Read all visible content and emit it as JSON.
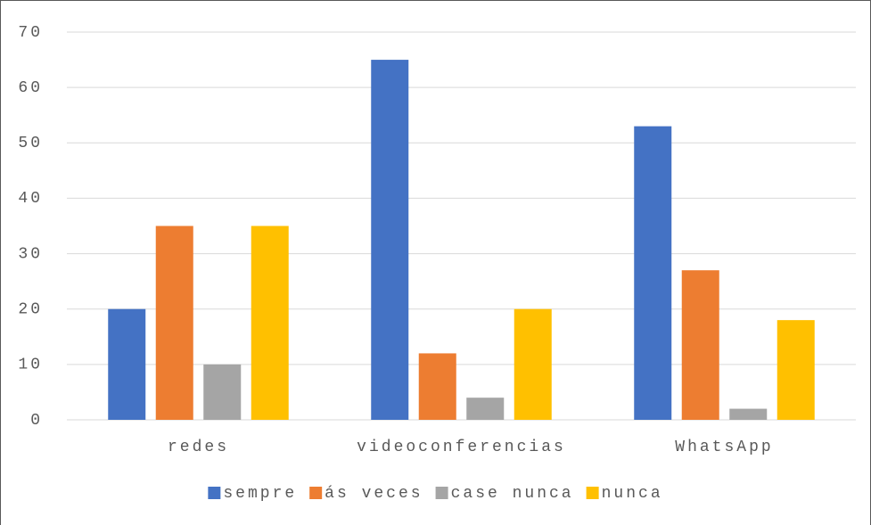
{
  "chart_data": {
    "type": "bar",
    "categories": [
      "redes",
      "videoconferencias",
      "WhatsApp"
    ],
    "series": [
      {
        "name": "sempre",
        "color": "#4472c4",
        "values": [
          20,
          65,
          53
        ]
      },
      {
        "name": "ás veces",
        "color": "#ed7d31",
        "values": [
          35,
          12,
          27
        ]
      },
      {
        "name": "case nunca",
        "color": "#a5a5a5",
        "values": [
          10,
          4,
          2
        ]
      },
      {
        "name": "nunca",
        "color": "#ffc000",
        "values": [
          35,
          20,
          18
        ]
      }
    ],
    "ylim": [
      0,
      70
    ],
    "yticks": [
      0,
      10,
      20,
      30,
      40,
      50,
      60,
      70
    ],
    "grid": true,
    "legend": "bottom"
  }
}
